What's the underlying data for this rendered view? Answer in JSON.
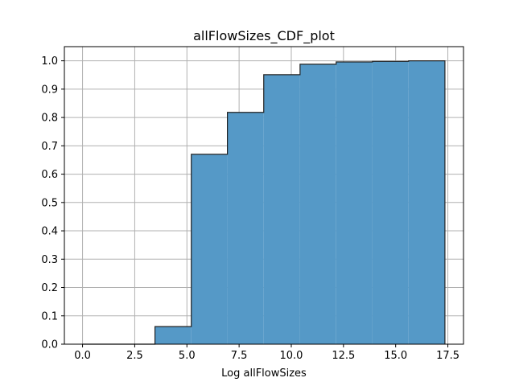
{
  "chart_data": {
    "type": "bar",
    "title": "allFlowSizes_CDF_plot",
    "xlabel": "Log allFlowSizes",
    "ylabel": "",
    "xlim": [
      -0.87,
      18.25
    ],
    "ylim": [
      0,
      1.05
    ],
    "grid": true,
    "x_ticks": [
      "0.0",
      "2.5",
      "5.0",
      "7.5",
      "10.0",
      "12.5",
      "15.0",
      "17.5"
    ],
    "y_ticks": [
      "0.0",
      "0.1",
      "0.2",
      "0.3",
      "0.4",
      "0.5",
      "0.6",
      "0.7",
      "0.8",
      "0.9",
      "1.0"
    ],
    "bin_edges": [
      0.0,
      1.74,
      3.47,
      5.21,
      6.94,
      8.68,
      10.42,
      12.15,
      13.89,
      15.62,
      17.36
    ],
    "values": [
      0.0,
      0.0,
      0.062,
      0.67,
      0.818,
      0.951,
      0.988,
      0.996,
      0.998,
      1.0
    ],
    "colors": {
      "fill": "#5599c7",
      "edge": "#222222",
      "grid": "#b0b0b0"
    }
  }
}
